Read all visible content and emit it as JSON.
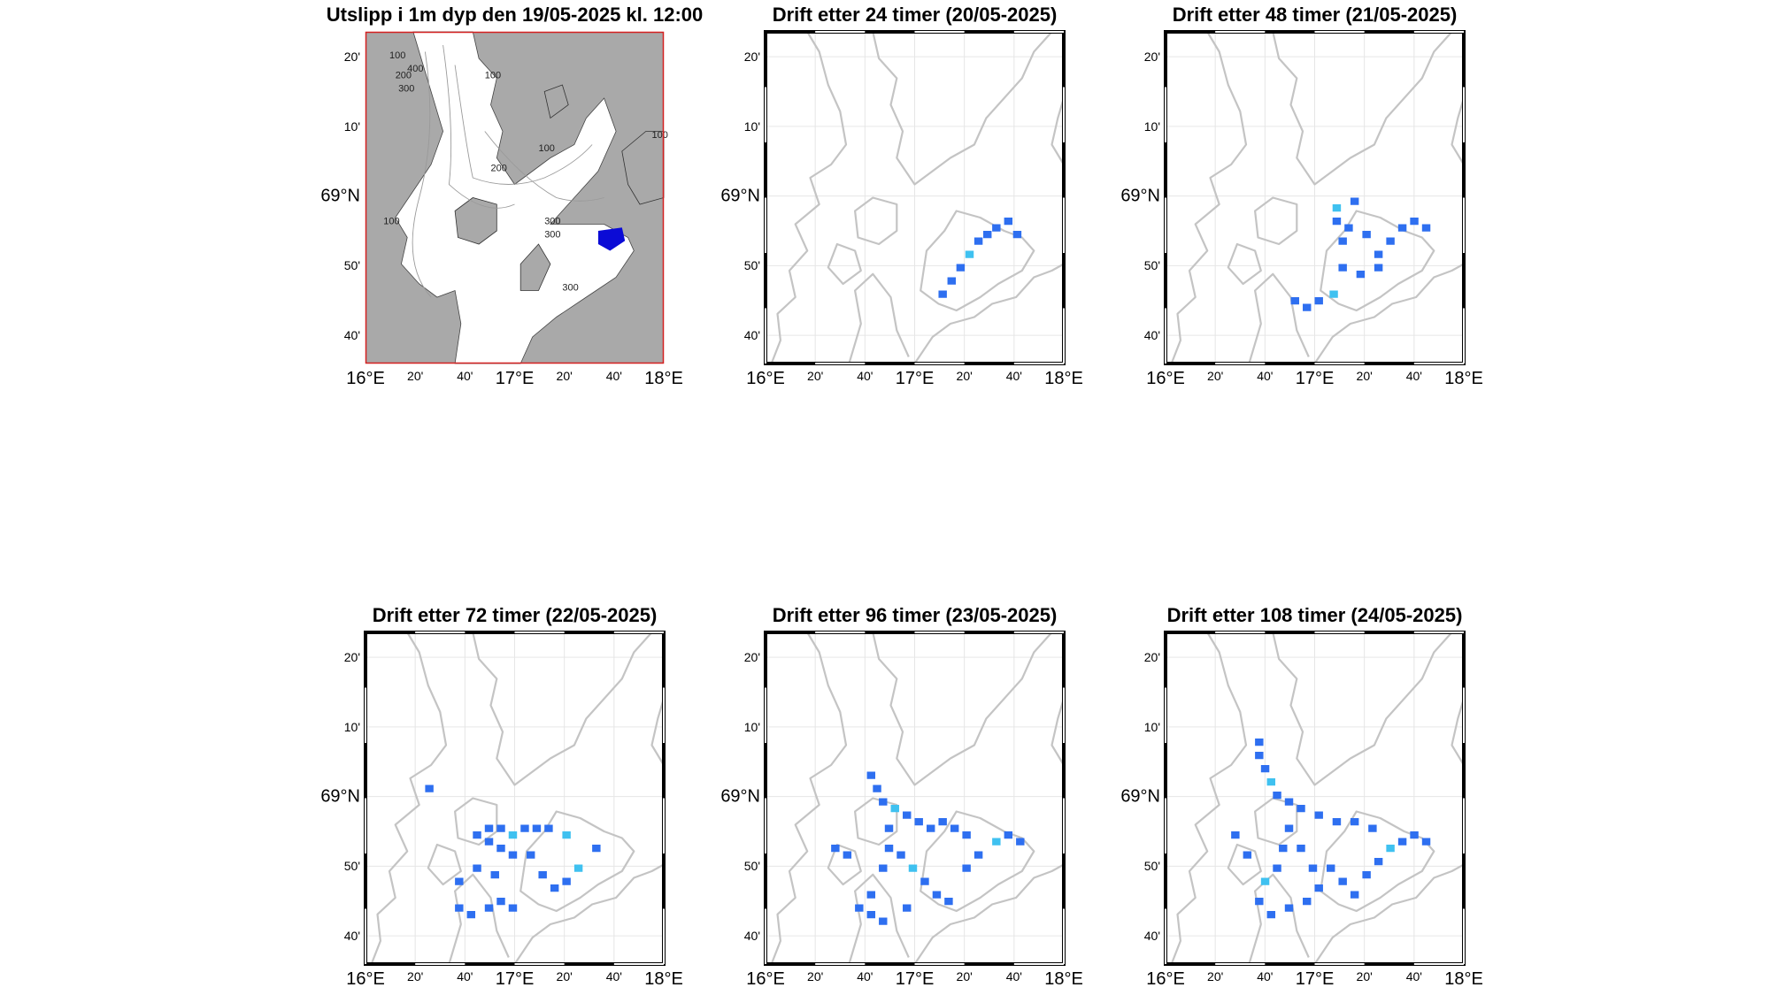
{
  "panels": [
    {
      "title": "Utslipp i 1m dyp den 19/05-2025 kl. 12:00",
      "style": "bathymetry"
    },
    {
      "title": "Drift etter 24 timer (20/05-2025)",
      "style": "drift"
    },
    {
      "title": "Drift etter 48 timer (21/05-2025)",
      "style": "drift"
    },
    {
      "title": "Drift etter 72 timer (22/05-2025)",
      "style": "drift"
    },
    {
      "title": "Drift etter 96 timer (23/05-2025)",
      "style": "drift"
    },
    {
      "title": "Drift etter 108 timer (24/05-2025)",
      "style": "drift"
    }
  ],
  "axes": {
    "lon_labels": [
      "16°E",
      "20'",
      "40'",
      "17°E",
      "20'",
      "40'",
      "18°E"
    ],
    "lat_labels": [
      "20'",
      "10'",
      "69°N",
      "50'",
      "40'"
    ]
  },
  "contour_labels": [
    "100",
    "200",
    "300",
    "400",
    "100",
    "200",
    "300",
    "300",
    "100",
    "100",
    "100",
    "300"
  ],
  "colors": {
    "land": "#a9a9a9",
    "coast_line": "#c4c4c4",
    "grid": "#e6e6e6",
    "particles": "#2e6ff0",
    "particles_light": "#3fc1f0",
    "release": "#0b0bd6",
    "frame": "#000000",
    "border_red": "#d42020"
  },
  "legend_none": ""
}
